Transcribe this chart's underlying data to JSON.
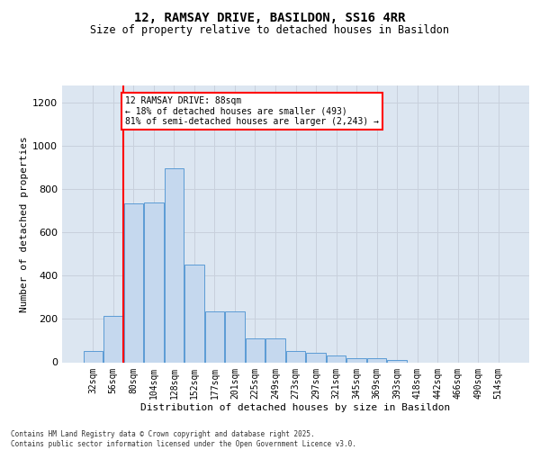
{
  "title_line1": "12, RAMSAY DRIVE, BASILDON, SS16 4RR",
  "title_line2": "Size of property relative to detached houses in Basildon",
  "xlabel": "Distribution of detached houses by size in Basildon",
  "ylabel": "Number of detached properties",
  "footer_line1": "Contains HM Land Registry data © Crown copyright and database right 2025.",
  "footer_line2": "Contains public sector information licensed under the Open Government Licence v3.0.",
  "annotation_line1": "12 RAMSAY DRIVE: 88sqm",
  "annotation_line2": "← 18% of detached houses are smaller (493)",
  "annotation_line3": "81% of semi-detached houses are larger (2,243) →",
  "bar_color": "#c5d8ee",
  "bar_edge_color": "#5b9bd5",
  "vline_color": "red",
  "grid_color": "#c8d0dc",
  "bg_color": "#dce6f1",
  "categories": [
    "32sqm",
    "56sqm",
    "80sqm",
    "104sqm",
    "128sqm",
    "152sqm",
    "177sqm",
    "201sqm",
    "225sqm",
    "249sqm",
    "273sqm",
    "297sqm",
    "321sqm",
    "345sqm",
    "369sqm",
    "393sqm",
    "418sqm",
    "442sqm",
    "466sqm",
    "490sqm",
    "514sqm"
  ],
  "values": [
    50,
    215,
    735,
    740,
    895,
    450,
    235,
    235,
    110,
    110,
    50,
    45,
    30,
    20,
    20,
    10,
    0,
    0,
    0,
    0,
    0
  ],
  "ylim": [
    0,
    1280
  ],
  "yticks": [
    0,
    200,
    400,
    600,
    800,
    1000,
    1200
  ],
  "vline_position": 1.5,
  "title_fontsize": 10,
  "subtitle_fontsize": 8.5,
  "ylabel_fontsize": 8,
  "xlabel_fontsize": 8,
  "tick_fontsize": 7,
  "ann_fontsize": 7,
  "footer_fontsize": 5.5
}
